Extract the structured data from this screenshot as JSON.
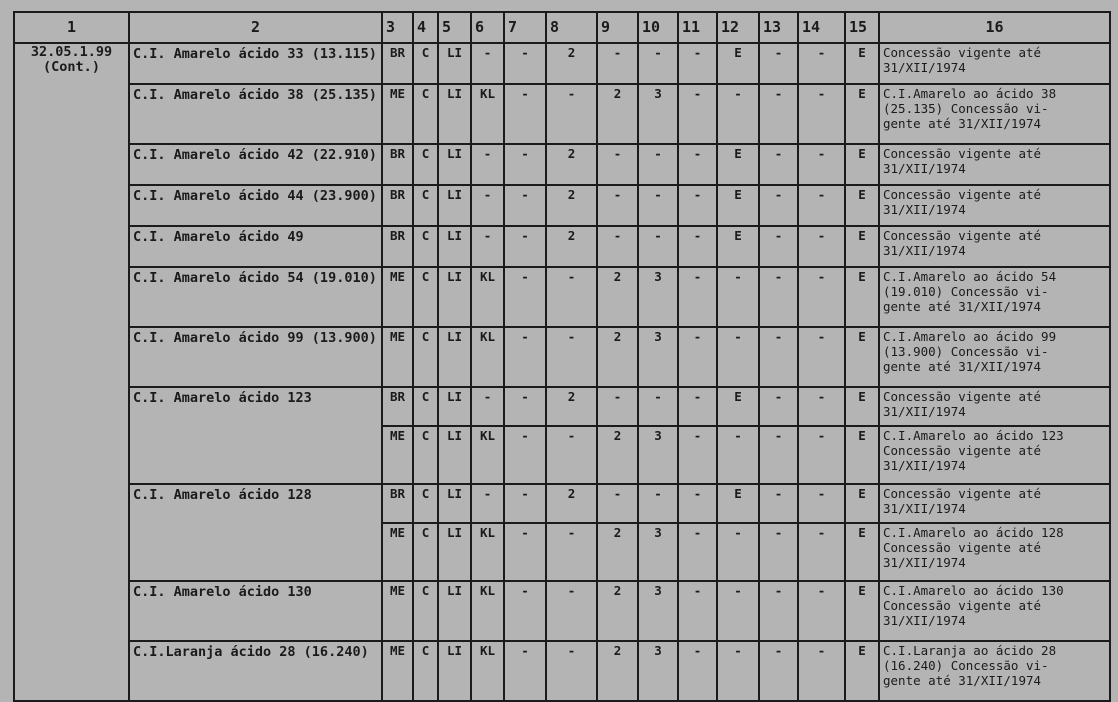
{
  "header": [
    "1",
    "2",
    "3",
    "4",
    "5",
    "6",
    "7",
    "8",
    "9",
    "10",
    "11",
    "12",
    "13",
    "14",
    "15",
    "16"
  ],
  "code": "32.05.1.99\n(Cont.)",
  "entries": [
    {
      "name": "C.I. Amarelo ácido 33 (13.115)",
      "rows": [
        [
          "BR",
          "C",
          "LI",
          "-",
          "-",
          "2",
          "-",
          "-",
          "-",
          "E",
          "-",
          "-",
          "E",
          "Concessão vigente até\n31/XII/1974"
        ]
      ]
    },
    {
      "name": "C.I. Amarelo ácido 38 (25.135)",
      "rows": [
        [
          "ME",
          "C",
          "LI",
          "KL",
          "-",
          "-",
          "2",
          "3",
          "-",
          "-",
          "-",
          "-",
          "E",
          "C.I.Amarelo ao ácido 38\n(25.135) Concessão vi-\ngente até 31/XII/1974"
        ]
      ]
    },
    {
      "name": "C.I. Amarelo ácido 42 (22.910)",
      "rows": [
        [
          "BR",
          "C",
          "LI",
          "-",
          "-",
          "2",
          "-",
          "-",
          "-",
          "E",
          "-",
          "-",
          "E",
          "Concessão vigente até\n31/XII/1974"
        ]
      ]
    },
    {
      "name": "C.I. Amarelo ácido 44 (23.900)",
      "rows": [
        [
          "BR",
          "C",
          "LI",
          "-",
          "-",
          "2",
          "-",
          "-",
          "-",
          "E",
          "-",
          "-",
          "E",
          "Concessão vigente até\n31/XII/1974"
        ]
      ]
    },
    {
      "name": "C.I. Amarelo ácido 49",
      "rows": [
        [
          "BR",
          "C",
          "LI",
          "-",
          "-",
          "2",
          "-",
          "-",
          "-",
          "E",
          "-",
          "-",
          "E",
          "Concessão vigente até\n31/XII/1974"
        ]
      ]
    },
    {
      "name": "C.I. Amarelo ácido 54 (19.010)",
      "rows": [
        [
          "ME",
          "C",
          "LI",
          "KL",
          "-",
          "-",
          "2",
          "3",
          "-",
          "-",
          "-",
          "-",
          "E",
          "C.I.Amarelo ao ácido 54\n(19.010) Concessão vi-\ngente até 31/XII/1974"
        ]
      ]
    },
    {
      "name": "C.I. Amarelo ácido 99 (13.900)",
      "rows": [
        [
          "ME",
          "C",
          "LI",
          "KL",
          "-",
          "-",
          "2",
          "3",
          "-",
          "-",
          "-",
          "-",
          "E",
          "C.I.Amarelo ao ácido 99\n(13.900) Concessão vi-\ngente até 31/XII/1974"
        ]
      ]
    },
    {
      "name": "C.I. Amarelo ácido 123",
      "rows": [
        [
          "BR",
          "C",
          "LI",
          "-",
          "-",
          "2",
          "-",
          "-",
          "-",
          "E",
          "-",
          "-",
          "E",
          "Concessão vigente até\n31/XII/1974"
        ],
        [
          "ME",
          "C",
          "LI",
          "KL",
          "-",
          "-",
          "2",
          "3",
          "-",
          "-",
          "-",
          "-",
          "E",
          "C.I.Amarelo ao ácido 123\nConcessão vigente até\n31/XII/1974"
        ]
      ]
    },
    {
      "name": "C.I. Amarelo ácido 128",
      "rows": [
        [
          "BR",
          "C",
          "LI",
          "-",
          "-",
          "2",
          "-",
          "-",
          "-",
          "E",
          "-",
          "-",
          "E",
          "Concessão vigente até\n31/XII/1974"
        ],
        [
          "ME",
          "C",
          "LI",
          "KL",
          "-",
          "-",
          "2",
          "3",
          "-",
          "-",
          "-",
          "-",
          "E",
          "C.I.Amarelo ao ácido 128\nConcessão vigente até\n31/XII/1974"
        ]
      ]
    },
    {
      "name": "C.I. Amarelo ácido 130",
      "rows": [
        [
          "ME",
          "C",
          "LI",
          "KL",
          "-",
          "-",
          "2",
          "3",
          "-",
          "-",
          "-",
          "-",
          "E",
          "C.I.Amarelo ao ácido 130\nConcessão vigente até\n31/XII/1974"
        ]
      ]
    },
    {
      "name": "C.I.Laranja ácido 28 (16.240)",
      "rows": [
        [
          "ME",
          "C",
          "LI",
          "KL",
          "-",
          "-",
          "2",
          "3",
          "-",
          "-",
          "-",
          "-",
          "E",
          "C.I.Laranja ao ácido 28\n(16.240) Concessão vi-\ngente até 31/XII/1974"
        ]
      ]
    }
  ]
}
